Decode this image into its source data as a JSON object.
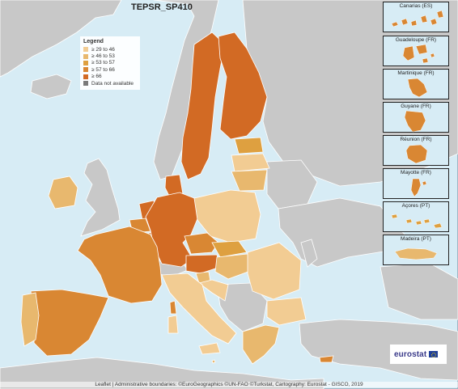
{
  "title": "TEPSR_SP410",
  "legend": {
    "title": "Legend",
    "items": [
      {
        "label": "≥ 29 to 46",
        "color": "#f2cc93"
      },
      {
        "label": "≥ 46 to 53",
        "color": "#e8b86e"
      },
      {
        "label": "≥ 53 to 57",
        "color": "#dea040"
      },
      {
        "label": "≥ 57 to 66",
        "color": "#d98733"
      },
      {
        "label": "≥ 66",
        "color": "#d26a24"
      },
      {
        "label": "Data not available",
        "color": "#7a7a7a"
      }
    ]
  },
  "insets": [
    {
      "label": "Canarias (ES)"
    },
    {
      "label": "Guadeloupe (FR)"
    },
    {
      "label": "Martinique (FR)"
    },
    {
      "label": "Guyane (FR)"
    },
    {
      "label": "Réunion (FR)"
    },
    {
      "label": "Mayotte (FR)"
    },
    {
      "label": "Açores (PT)"
    },
    {
      "label": "Madeira (PT)"
    }
  ],
  "colors": {
    "sea": "#d7ecf5",
    "non_eu_land": "#c8c8c8",
    "border": "#ffffff"
  },
  "logo": {
    "text": "eurostat",
    "icon": "eu-flag-icon"
  },
  "attribution": "Leaflet | Administrative boundaries: ©EuroGeographics ©UN-FAO ©Turkstat, Cartography: Eurostat - GISCO, 2019"
}
